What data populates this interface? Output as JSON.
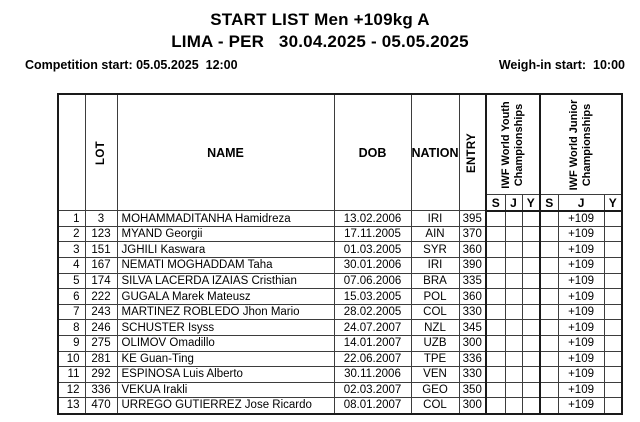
{
  "header": {
    "title": "START LIST Men +109kg A",
    "location_line": "LIMA - PER   30.04.2025 - 05.05.2025",
    "competition_start": "Competition start: 05.05.2025  12:00",
    "weigh_in": "Weigh-in start:  10:00"
  },
  "table": {
    "columns": {
      "lot": "LOT",
      "name": "NAME",
      "dob": "DOB",
      "nation": "NATION",
      "entry": "ENTRY",
      "youth_group": [
        "IWF World Youth",
        "Championships"
      ],
      "junior_group": [
        "IWF World Junior",
        "Championships"
      ],
      "youth_sub": [
        "S",
        "J",
        "Y"
      ],
      "junior_sub": [
        "S",
        "J",
        "Y"
      ]
    },
    "athletes": [
      {
        "num": "1",
        "lot": "3",
        "name": "MOHAMMADITANHA Hamidreza",
        "dob": "13.02.2006",
        "nation": "IRI",
        "entry": "395",
        "youth_s": "",
        "youth_j": "",
        "youth_y": "",
        "junior_s": "",
        "junior_j": "+109",
        "junior_y": ""
      },
      {
        "num": "2",
        "lot": "123",
        "name": "MYAND Georgii",
        "dob": "17.11.2005",
        "nation": "AIN",
        "entry": "370",
        "youth_s": "",
        "youth_j": "",
        "youth_y": "",
        "junior_s": "",
        "junior_j": "+109",
        "junior_y": ""
      },
      {
        "num": "3",
        "lot": "151",
        "name": "JGHILI Kaswara",
        "dob": "01.03.2005",
        "nation": "SYR",
        "entry": "360",
        "youth_s": "",
        "youth_j": "",
        "youth_y": "",
        "junior_s": "",
        "junior_j": "+109",
        "junior_y": ""
      },
      {
        "num": "4",
        "lot": "167",
        "name": "NEMATI MOGHADDAM Taha",
        "dob": "30.01.2006",
        "nation": "IRI",
        "entry": "390",
        "youth_s": "",
        "youth_j": "",
        "youth_y": "",
        "junior_s": "",
        "junior_j": "+109",
        "junior_y": ""
      },
      {
        "num": "5",
        "lot": "174",
        "name": "SILVA LACERDA IZAIAS Cristhian",
        "dob": "07.06.2006",
        "nation": "BRA",
        "entry": "335",
        "youth_s": "",
        "youth_j": "",
        "youth_y": "",
        "junior_s": "",
        "junior_j": "+109",
        "junior_y": ""
      },
      {
        "num": "6",
        "lot": "222",
        "name": "GUGALA Marek Mateusz",
        "dob": "15.03.2005",
        "nation": "POL",
        "entry": "360",
        "youth_s": "",
        "youth_j": "",
        "youth_y": "",
        "junior_s": "",
        "junior_j": "+109",
        "junior_y": ""
      },
      {
        "num": "7",
        "lot": "243",
        "name": "MARTINEZ ROBLEDO Jhon Mario",
        "dob": "28.02.2005",
        "nation": "COL",
        "entry": "330",
        "youth_s": "",
        "youth_j": "",
        "youth_y": "",
        "junior_s": "",
        "junior_j": "+109",
        "junior_y": ""
      },
      {
        "num": "8",
        "lot": "246",
        "name": "SCHUSTER Isyss",
        "dob": "24.07.2007",
        "nation": "NZL",
        "entry": "345",
        "youth_s": "",
        "youth_j": "",
        "youth_y": "",
        "junior_s": "",
        "junior_j": "+109",
        "junior_y": ""
      },
      {
        "num": "9",
        "lot": "275",
        "name": "OLIMOV Omadillo",
        "dob": "14.01.2007",
        "nation": "UZB",
        "entry": "300",
        "youth_s": "",
        "youth_j": "",
        "youth_y": "",
        "junior_s": "",
        "junior_j": "+109",
        "junior_y": ""
      },
      {
        "num": "10",
        "lot": "281",
        "name": "KE Guan-Ting",
        "dob": "22.06.2007",
        "nation": "TPE",
        "entry": "336",
        "youth_s": "",
        "youth_j": "",
        "youth_y": "",
        "junior_s": "",
        "junior_j": "+109",
        "junior_y": ""
      },
      {
        "num": "11",
        "lot": "292",
        "name": "ESPINOSA Luis Alberto",
        "dob": "30.11.2006",
        "nation": "VEN",
        "entry": "330",
        "youth_s": "",
        "youth_j": "",
        "youth_y": "",
        "junior_s": "",
        "junior_j": "+109",
        "junior_y": ""
      },
      {
        "num": "12",
        "lot": "336",
        "name": "VEKUA Irakli",
        "dob": "02.03.2007",
        "nation": "GEO",
        "entry": "350",
        "youth_s": "",
        "youth_j": "",
        "youth_y": "",
        "junior_s": "",
        "junior_j": "+109",
        "junior_y": ""
      },
      {
        "num": "13",
        "lot": "470",
        "name": "URREGO GUTIERREZ Jose Ricardo",
        "dob": "08.01.2007",
        "nation": "COL",
        "entry": "300",
        "youth_s": "",
        "youth_j": "",
        "youth_y": "",
        "junior_s": "",
        "junior_j": "+109",
        "junior_y": ""
      }
    ]
  }
}
